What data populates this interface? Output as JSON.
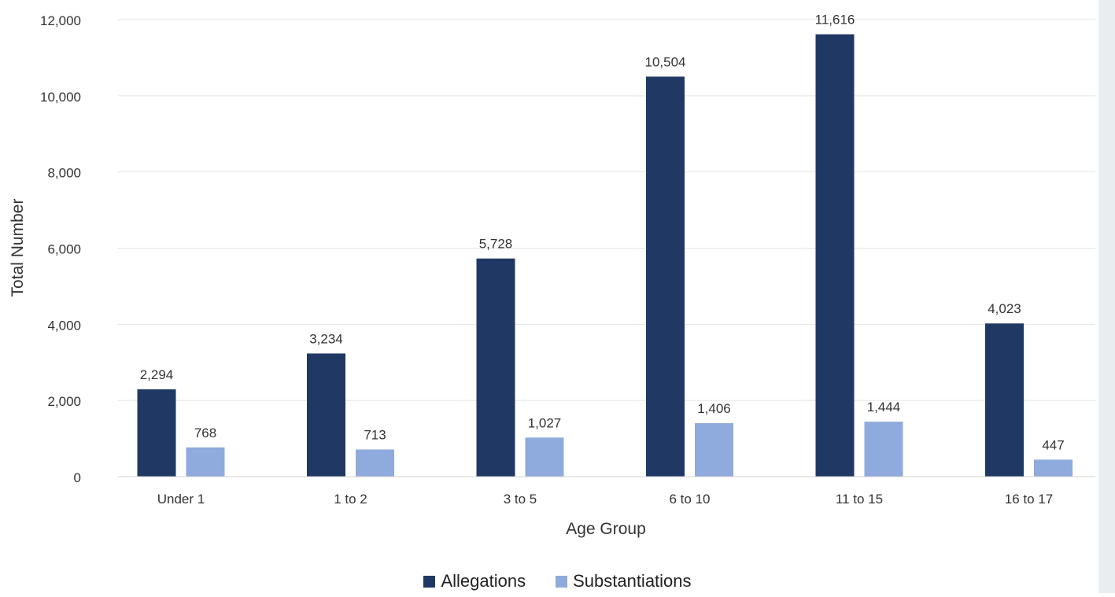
{
  "chart_data": {
    "type": "bar",
    "title": "",
    "xlabel": "Age Group",
    "ylabel": "Total Number",
    "categories": [
      "Under 1",
      "1 to 2",
      "3 to 5",
      "6 to 10",
      "11 to 15",
      "16 to 17"
    ],
    "series": [
      {
        "name": "Allegations",
        "color": "#203864",
        "values": [
          2294,
          3234,
          5728,
          10504,
          11616,
          4023
        ],
        "labels": [
          "2,294",
          "3,234",
          "5,728",
          "10,504",
          "11,616",
          "4,023"
        ]
      },
      {
        "name": "Substantiations",
        "color": "#8faadc",
        "values": [
          768,
          713,
          1027,
          1406,
          1444,
          447
        ],
        "labels": [
          "768",
          "713",
          "1,027",
          "1,406",
          "1,444",
          "447"
        ]
      }
    ],
    "ylim": [
      0,
      12000
    ],
    "yticks": [
      0,
      2000,
      4000,
      6000,
      8000,
      10000,
      12000
    ],
    "ytick_labels": [
      "0",
      "2,000",
      "4,000",
      "6,000",
      "8,000",
      "10,000",
      "12,000"
    ],
    "grid": true,
    "legend_position": "bottom-center"
  }
}
